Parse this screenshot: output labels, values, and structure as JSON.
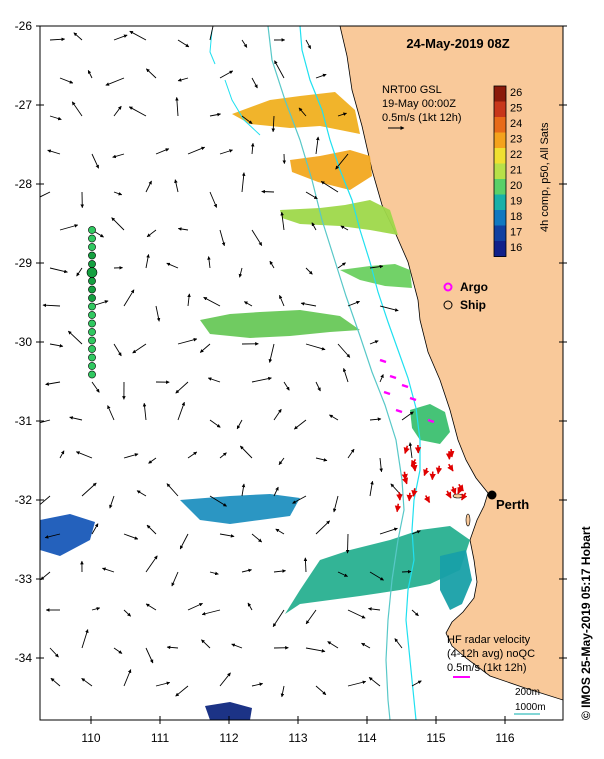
{
  "title": "24-May-2019 08Z",
  "ticks": {
    "lat": [
      "-26",
      "-27",
      "-28",
      "-29",
      "-30",
      "-31",
      "-32",
      "-33",
      "-34"
    ],
    "lon": [
      "110",
      "111",
      "112",
      "113",
      "114",
      "115",
      "116"
    ]
  },
  "gsl": {
    "line1": "NRT00 GSL",
    "line2": "19-May 00:00Z",
    "line3": "0.5m/s (1kt 12h)"
  },
  "colorbar": {
    "labels": [
      "26",
      "25",
      "24",
      "23",
      "22",
      "21",
      "20",
      "19",
      "18",
      "17",
      "16"
    ],
    "caption": "4h comp, p50, All Sats"
  },
  "legend": {
    "argo": "Argo",
    "ship": "Ship"
  },
  "city": "Perth",
  "hf": {
    "line1": "HF radar velocity",
    "line2": "(4-12h avg) noQC",
    "line3": "0.5m/s (1kt 12h)"
  },
  "contours": {
    "c200": "200m",
    "c1000": "1000m"
  },
  "credit": "© IMOS 25-May-2019 05:17 Hobart",
  "colors": {
    "land": "#f9c99a",
    "isobath200": "#20e0f0",
    "isobath1000": "#58c8c8",
    "argo": "#ff00ff",
    "ship": "#000000",
    "hf_arrows": "#e00000"
  }
}
